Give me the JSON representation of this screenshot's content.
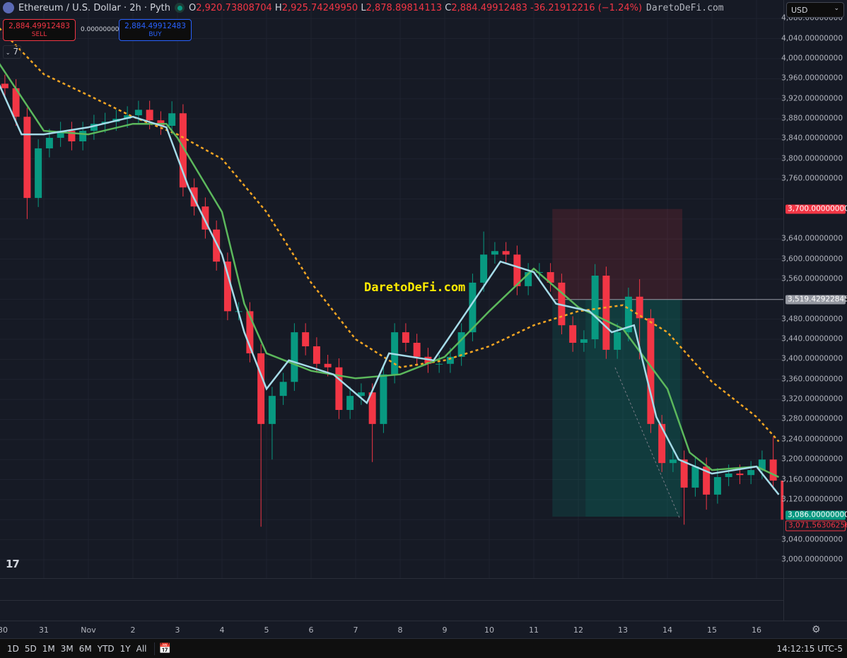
{
  "header": {
    "symbol": "Ethereum / U.S. Dollar · 2h · Pyth",
    "o_label": "O",
    "o": "2,920.73808704",
    "h_label": "H",
    "h": "2,925.74249950",
    "l_label": "L",
    "l": "2,878.89814113",
    "c_label": "C",
    "c": "2,884.49912483",
    "change": "-36.21912216 (−1.24%)",
    "watermark_inline": "DaretoDeFi.com"
  },
  "trade": {
    "sell_price": "2,884.49912483",
    "sell_label": "SELL",
    "spread": "0.00000000",
    "buy_price": "2,884.49912483",
    "buy_label": "BUY"
  },
  "indicators_toggle": {
    "count": "7"
  },
  "currency": "USD",
  "watermark": "DaretoDeFi.com",
  "logo": "TV",
  "colors": {
    "up": "#089981",
    "down": "#f23645",
    "ma_fast": "#a5dbe8",
    "ma_mid": "#5cb85c",
    "ma_slow": "#f5a623",
    "stop_zone": "#f23645",
    "target_zone": "#089981"
  },
  "price_labels": {
    "stop": "3,700.00000000",
    "entry": "3,519.42922845",
    "target": "3,086.00000000",
    "last": "3,071.56306256"
  },
  "timebar": {
    "ranges": [
      "1D",
      "5D",
      "1M",
      "3M",
      "6M",
      "YTD",
      "1Y",
      "All"
    ],
    "clock": "14:12:15 UTC-5"
  },
  "chart_data": {
    "type": "candlestick",
    "title": "Ethereum / U.S. Dollar · 2h · Pyth",
    "ylim": [
      2985,
      4090
    ],
    "y_ticks": [
      3000,
      3040,
      3080,
      3120,
      3160,
      3200,
      3240,
      3280,
      3320,
      3360,
      3400,
      3440,
      3480,
      3520,
      3560,
      3600,
      3640,
      3680,
      3720,
      3760,
      3800,
      3840,
      3880,
      3920,
      3960,
      4000,
      4040,
      4080
    ],
    "x_ticks": [
      [
        "10-30",
        "30"
      ],
      [
        "10-31",
        "31"
      ],
      [
        "11-01",
        "Nov"
      ],
      [
        "11-02",
        "2"
      ],
      [
        "11-03",
        "3"
      ],
      [
        "11-04",
        "4"
      ],
      [
        "11-05",
        "5"
      ],
      [
        "11-06",
        "6"
      ],
      [
        "11-07",
        "7"
      ],
      [
        "11-08",
        "8"
      ],
      [
        "11-09",
        "9"
      ],
      [
        "11-10",
        "10"
      ],
      [
        "11-11",
        "11"
      ],
      [
        "11-12",
        "12"
      ],
      [
        "11-13",
        "13"
      ],
      [
        "11-14",
        "14"
      ],
      [
        "11-15",
        "15"
      ],
      [
        "11-16",
        "16"
      ]
    ],
    "grid": true,
    "candles": [
      [
        "10-30 00",
        3950,
        3968,
        3923,
        3941
      ],
      [
        "10-30 06",
        3941,
        3959,
        3866,
        3884
      ],
      [
        "10-30 12",
        3884,
        3902,
        3680,
        3722
      ],
      [
        "10-30 18",
        3722,
        3839,
        3704,
        3821
      ],
      [
        "10-31 00",
        3821,
        3860,
        3803,
        3842
      ],
      [
        "10-31 06",
        3842,
        3874,
        3824,
        3856
      ],
      [
        "10-31 12",
        3856,
        3874,
        3817,
        3835
      ],
      [
        "10-31 18",
        3835,
        3874,
        3817,
        3856
      ],
      [
        "11-01 00",
        3856,
        3888,
        3838,
        3870
      ],
      [
        "11-01 06",
        3870,
        3892,
        3852,
        3874
      ],
      [
        "11-01 12",
        3874,
        3898,
        3856,
        3880
      ],
      [
        "11-01 18",
        3880,
        3905,
        3862,
        3887
      ],
      [
        "11-02 00",
        3887,
        3916,
        3869,
        3898
      ],
      [
        "11-02 06",
        3898,
        3916,
        3859,
        3877
      ],
      [
        "11-02 12",
        3877,
        3895,
        3848,
        3866
      ],
      [
        "11-02 18",
        3866,
        3915,
        3848,
        3891
      ],
      [
        "11-03 00",
        3891,
        3909,
        3725,
        3743
      ],
      [
        "11-03 06",
        3743,
        3761,
        3687,
        3705
      ],
      [
        "11-03 12",
        3705,
        3723,
        3641,
        3659
      ],
      [
        "11-03 18",
        3659,
        3677,
        3577,
        3595
      ],
      [
        "11-04 00",
        3595,
        3613,
        3478,
        3496
      ],
      [
        "11-04 06",
        3496,
        3514,
        3478,
        3496
      ],
      [
        "11-04 12",
        3496,
        3514,
        3394,
        3412
      ],
      [
        "11-04 18",
        3412,
        3430,
        3066,
        3271
      ],
      [
        "11-05 00",
        3271,
        3345,
        3200,
        3327
      ],
      [
        "11-05 06",
        3327,
        3373,
        3309,
        3355
      ],
      [
        "11-05 12",
        3355,
        3472,
        3337,
        3454
      ],
      [
        "11-05 18",
        3454,
        3472,
        3408,
        3426
      ],
      [
        "11-06 00",
        3426,
        3444,
        3373,
        3391
      ],
      [
        "11-06 06",
        3391,
        3409,
        3366,
        3384
      ],
      [
        "11-06 12",
        3384,
        3402,
        3281,
        3299
      ],
      [
        "11-06 18",
        3299,
        3345,
        3281,
        3327
      ],
      [
        "11-07 00",
        3327,
        3352,
        3309,
        3334
      ],
      [
        "11-07 06",
        3334,
        3352,
        3195,
        3271
      ],
      [
        "11-07 12",
        3271,
        3388,
        3253,
        3370
      ],
      [
        "11-07 18",
        3370,
        3472,
        3352,
        3454
      ],
      [
        "11-08 00",
        3454,
        3472,
        3415,
        3433
      ],
      [
        "11-08 06",
        3433,
        3451,
        3387,
        3405
      ],
      [
        "11-08 12",
        3405,
        3423,
        3373,
        3391
      ],
      [
        "11-08 18",
        3391,
        3409,
        3373,
        3391
      ],
      [
        "11-09 00",
        3391,
        3423,
        3373,
        3405
      ],
      [
        "11-09 06",
        3405,
        3472,
        3387,
        3454
      ],
      [
        "11-09 12",
        3454,
        3571,
        3436,
        3553
      ],
      [
        "11-09 18",
        3553,
        3655,
        3535,
        3609
      ],
      [
        "11-10 00",
        3609,
        3634,
        3591,
        3616
      ],
      [
        "11-10 06",
        3616,
        3634,
        3591,
        3609
      ],
      [
        "11-10 12",
        3609,
        3627,
        3528,
        3546
      ],
      [
        "11-10 18",
        3546,
        3592,
        3528,
        3574
      ],
      [
        "11-11 00",
        3574,
        3592,
        3556,
        3574
      ],
      [
        "11-11 06",
        3574,
        3592,
        3535,
        3553
      ],
      [
        "11-11 12",
        3553,
        3571,
        3450,
        3468
      ],
      [
        "11-11 18",
        3468,
        3486,
        3415,
        3433
      ],
      [
        "11-12 00",
        3433,
        3458,
        3415,
        3440
      ],
      [
        "11-12 06",
        3440,
        3590,
        3422,
        3567
      ],
      [
        "11-12 12",
        3567,
        3585,
        3401,
        3419
      ],
      [
        "11-12 18",
        3419,
        3472,
        3401,
        3454
      ],
      [
        "11-13 00",
        3454,
        3543,
        3436,
        3525
      ],
      [
        "11-13 06",
        3525,
        3560,
        3400,
        3482
      ],
      [
        "11-13 12",
        3482,
        3500,
        3253,
        3271
      ],
      [
        "11-13 18",
        3271,
        3289,
        3175,
        3193
      ],
      [
        "11-14 00",
        3193,
        3218,
        3175,
        3200
      ],
      [
        "11-14 06",
        3200,
        3218,
        3070,
        3144
      ],
      [
        "11-14 12",
        3144,
        3204,
        3126,
        3186
      ],
      [
        "11-14 18",
        3186,
        3204,
        3100,
        3130
      ],
      [
        "11-15 00",
        3130,
        3183,
        3112,
        3165
      ],
      [
        "11-15 06",
        3165,
        3190,
        3147,
        3172
      ],
      [
        "11-15 12",
        3172,
        3190,
        3151,
        3169
      ],
      [
        "11-15 18",
        3169,
        3197,
        3151,
        3179
      ],
      [
        "11-16 00",
        3179,
        3218,
        3161,
        3200
      ],
      [
        "11-16 06",
        3200,
        3245,
        3140,
        3158
      ],
      [
        "11-16 12",
        3158,
        3176,
        3035,
        3080
      ]
    ],
    "series": [
      {
        "style": "line",
        "color_key": "ma_slow",
        "dashed": true,
        "points": [
          [
            "10-30 00",
            4061
          ],
          [
            "10-31 00",
            3969
          ],
          [
            "11-01 00",
            3927
          ],
          [
            "11-02 00",
            3884
          ],
          [
            "11-03 00",
            3849
          ],
          [
            "11-04 00",
            3800
          ],
          [
            "11-05 00",
            3694
          ],
          [
            "11-06 00",
            3553
          ],
          [
            "11-07 00",
            3440
          ],
          [
            "11-08 00",
            3384
          ],
          [
            "11-09 00",
            3398
          ],
          [
            "11-10 00",
            3426
          ],
          [
            "11-11 00",
            3468
          ],
          [
            "11-12 00",
            3496
          ],
          [
            "11-13 00",
            3508
          ],
          [
            "11-14 00",
            3454
          ],
          [
            "11-15 00",
            3355
          ],
          [
            "11-16 00",
            3285
          ],
          [
            "11-16 12",
            3236
          ]
        ]
      },
      {
        "style": "line",
        "color_key": "ma_mid",
        "points": [
          [
            "10-30 00",
            3990
          ],
          [
            "10-31 00",
            3856
          ],
          [
            "11-01 00",
            3849
          ],
          [
            "11-02 00",
            3870
          ],
          [
            "11-02 18",
            3870
          ],
          [
            "11-03 00",
            3842
          ],
          [
            "11-04 00",
            3694
          ],
          [
            "11-04 12",
            3511
          ],
          [
            "11-05 00",
            3412
          ],
          [
            "11-06 00",
            3377
          ],
          [
            "11-07 00",
            3362
          ],
          [
            "11-08 00",
            3370
          ],
          [
            "11-09 00",
            3405
          ],
          [
            "11-10 00",
            3496
          ],
          [
            "11-11 00",
            3581
          ],
          [
            "11-12 00",
            3504
          ],
          [
            "11-13 00",
            3461
          ],
          [
            "11-14 00",
            3341
          ],
          [
            "11-14 12",
            3214
          ],
          [
            "11-15 00",
            3179
          ],
          [
            "11-16 00",
            3186
          ],
          [
            "11-16 12",
            3165
          ]
        ]
      },
      {
        "style": "line",
        "color_key": "ma_fast",
        "points": [
          [
            "10-30 00",
            3948
          ],
          [
            "10-30 12",
            3849
          ],
          [
            "10-31 00",
            3849
          ],
          [
            "11-01 00",
            3863
          ],
          [
            "11-02 00",
            3884
          ],
          [
            "11-02 18",
            3863
          ],
          [
            "11-03 06",
            3743
          ],
          [
            "11-04 00",
            3609
          ],
          [
            "11-04 12",
            3454
          ],
          [
            "11-05 00",
            3341
          ],
          [
            "11-05 12",
            3398
          ],
          [
            "11-06 12",
            3370
          ],
          [
            "11-07 06",
            3313
          ],
          [
            "11-07 18",
            3412
          ],
          [
            "11-08 18",
            3398
          ],
          [
            "11-09 12",
            3496
          ],
          [
            "11-10 06",
            3595
          ],
          [
            "11-11 00",
            3574
          ],
          [
            "11-11 12",
            3511
          ],
          [
            "11-12 06",
            3496
          ],
          [
            "11-12 18",
            3454
          ],
          [
            "11-13 06",
            3468
          ],
          [
            "11-13 18",
            3285
          ],
          [
            "11-14 06",
            3200
          ],
          [
            "11-15 00",
            3172
          ],
          [
            "11-16 00",
            3186
          ],
          [
            "11-16 12",
            3130
          ]
        ]
      }
    ],
    "position": {
      "side": "short",
      "start": "11-11 10",
      "end": "11-14 08",
      "entry": 3519.43,
      "stop": 3700,
      "target": 3086
    }
  }
}
